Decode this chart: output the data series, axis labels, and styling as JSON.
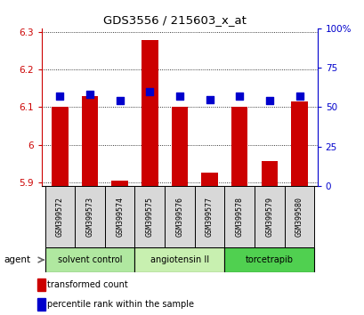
{
  "title": "GDS3556 / 215603_x_at",
  "samples": [
    "GSM399572",
    "GSM399573",
    "GSM399574",
    "GSM399575",
    "GSM399576",
    "GSM399577",
    "GSM399578",
    "GSM399579",
    "GSM399580"
  ],
  "red_values": [
    6.1,
    6.13,
    5.905,
    6.28,
    6.1,
    5.925,
    6.1,
    5.955,
    6.115
  ],
  "blue_values": [
    57,
    58,
    54,
    60,
    57,
    55,
    57,
    54,
    57
  ],
  "ylim_left": [
    5.89,
    6.31
  ],
  "ylim_right": [
    0,
    100
  ],
  "yticks_left": [
    5.9,
    6.0,
    6.1,
    6.2,
    6.3
  ],
  "yticks_right": [
    0,
    25,
    50,
    75,
    100
  ],
  "ytick_labels_left": [
    "5.9",
    "6",
    "6.1",
    "6.2",
    "6.3"
  ],
  "ytick_labels_right": [
    "0",
    "25",
    "50",
    "75",
    "100%"
  ],
  "groups": [
    {
      "label": "solvent control",
      "start": 0,
      "end": 2,
      "color": "#b0e8a0"
    },
    {
      "label": "angiotensin II",
      "start": 3,
      "end": 5,
      "color": "#c8f0b0"
    },
    {
      "label": "torcetrapib",
      "start": 6,
      "end": 8,
      "color": "#50d050"
    }
  ],
  "bar_bottom": 5.89,
  "red_color": "#cc0000",
  "blue_color": "#0000cc",
  "bar_width": 0.55,
  "blue_marker_size": 28,
  "grid_color": "#000000",
  "plot_bg_color": "#ffffff",
  "legend_red": "transformed count",
  "legend_blue": "percentile rank within the sample",
  "agent_label": "agent",
  "sample_box_color": "#d8d8d8"
}
